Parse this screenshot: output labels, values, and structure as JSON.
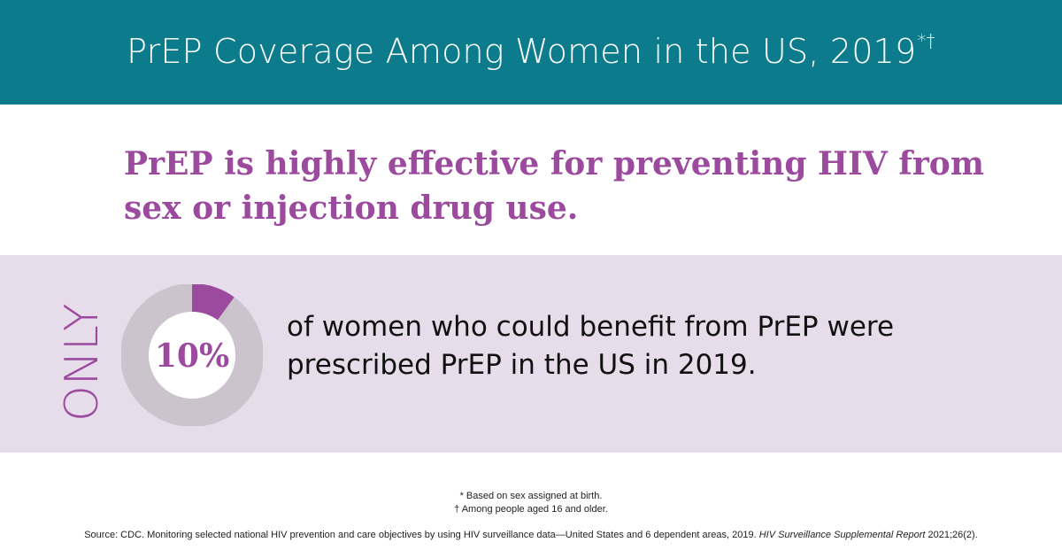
{
  "colors": {
    "header_bg": "#0c7b8b",
    "accent_purple": "#9b4a9e",
    "band_bg": "#e7dcea",
    "donut_track": "#cbc4cd"
  },
  "header": {
    "title": "PrEP Coverage Among Women in the US, 2019",
    "title_marks": "*†"
  },
  "subtitle": "PrEP is highly effective for preventing HIV from sex or injection drug use.",
  "stat": {
    "only_label": "ONLY",
    "percent_label": "10%",
    "percent_value": 10,
    "statement": "of women who could benefit from PrEP were prescribed PrEP in the US in 2019."
  },
  "footnotes": {
    "note1": "* Based on sex assigned at birth.",
    "note2": "† Among people aged 16 and older."
  },
  "source": {
    "prefix": "Source: CDC.  Monitoring selected national HIV prevention and care objectives by using HIV surveillance data—United States and 6 dependent areas, 2019. ",
    "report_title": "HIV Surveillance Supplemental Report",
    "suffix": " 2021;26(2)."
  }
}
